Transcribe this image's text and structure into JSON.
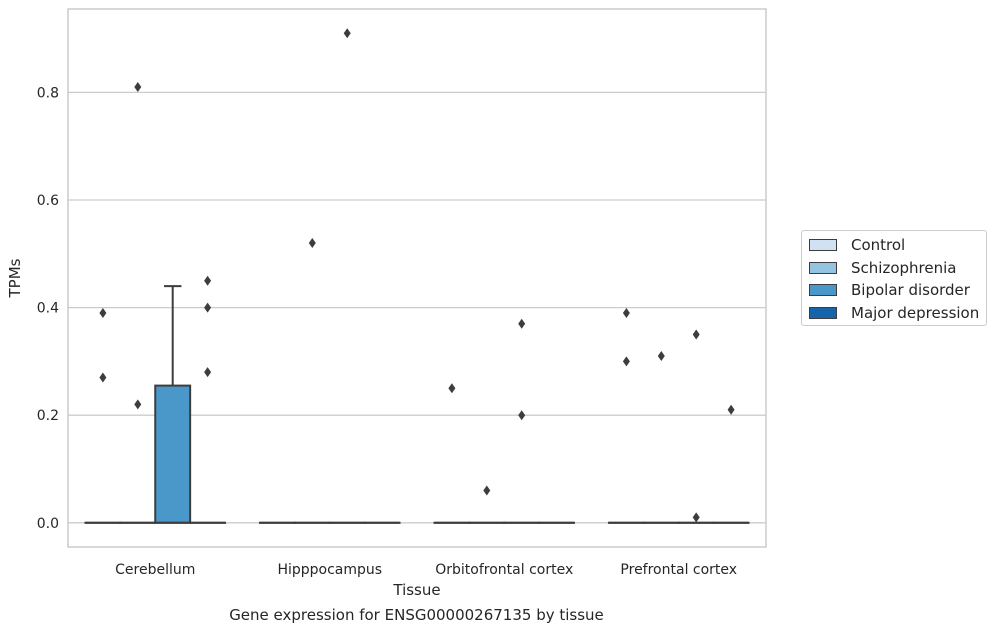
{
  "chart_data": {
    "type": "box",
    "xlabel": "Tissue",
    "ylabel": "TPMs",
    "caption": "Gene expression for ENSG00000267135 by tissue",
    "categories": [
      "Cerebellum",
      "Hipppocampus",
      "Orbitofrontal cortex",
      "Prefrontal cortex"
    ],
    "yticks": [
      "0.0",
      "0.2",
      "0.4",
      "0.6",
      "0.8"
    ],
    "ylim": [
      -0.045,
      0.955
    ],
    "grid": "horizontal",
    "legend_position": "right",
    "series": [
      {
        "name": "Control",
        "color": "#d0e1f2"
      },
      {
        "name": "Schizophrenia",
        "color": "#94c4df"
      },
      {
        "name": "Bipolar disorder",
        "color": "#4a98c9"
      },
      {
        "name": "Major depression",
        "color": "#1764ab"
      }
    ],
    "boxes": [
      {
        "category": "Cerebellum",
        "series": "Control",
        "q1": 0,
        "median": 0,
        "q3": 0,
        "whisker_low": 0,
        "whisker_high": 0,
        "fliers": [
          0.27,
          0.39
        ]
      },
      {
        "category": "Cerebellum",
        "series": "Schizophrenia",
        "q1": 0,
        "median": 0,
        "q3": 0,
        "whisker_low": 0,
        "whisker_high": 0,
        "fliers": [
          0.22,
          0.81
        ]
      },
      {
        "category": "Cerebellum",
        "series": "Bipolar disorder",
        "q1": 0,
        "median": 0,
        "q3": 0.255,
        "whisker_low": 0,
        "whisker_high": 0.44,
        "fliers": []
      },
      {
        "category": "Cerebellum",
        "series": "Major depression",
        "q1": 0,
        "median": 0,
        "q3": 0,
        "whisker_low": 0,
        "whisker_high": 0,
        "fliers": [
          0.28,
          0.4,
          0.45
        ]
      },
      {
        "category": "Hipppocampus",
        "series": "Control",
        "q1": 0,
        "median": 0,
        "q3": 0,
        "whisker_low": 0,
        "whisker_high": 0,
        "fliers": []
      },
      {
        "category": "Hipppocampus",
        "series": "Schizophrenia",
        "q1": 0,
        "median": 0,
        "q3": 0,
        "whisker_low": 0,
        "whisker_high": 0,
        "fliers": [
          0.52
        ]
      },
      {
        "category": "Hipppocampus",
        "series": "Bipolar disorder",
        "q1": 0,
        "median": 0,
        "q3": 0,
        "whisker_low": 0,
        "whisker_high": 0,
        "fliers": [
          0.91
        ]
      },
      {
        "category": "Hipppocampus",
        "series": "Major depression",
        "q1": 0,
        "median": 0,
        "q3": 0,
        "whisker_low": 0,
        "whisker_high": 0,
        "fliers": []
      },
      {
        "category": "Orbitofrontal cortex",
        "series": "Control",
        "q1": 0,
        "median": 0,
        "q3": 0,
        "whisker_low": 0,
        "whisker_high": 0,
        "fliers": [
          0.25
        ]
      },
      {
        "category": "Orbitofrontal cortex",
        "series": "Schizophrenia",
        "q1": 0,
        "median": 0,
        "q3": 0,
        "whisker_low": 0,
        "whisker_high": 0,
        "fliers": [
          0.06
        ]
      },
      {
        "category": "Orbitofrontal cortex",
        "series": "Bipolar disorder",
        "q1": 0,
        "median": 0,
        "q3": 0,
        "whisker_low": 0,
        "whisker_high": 0,
        "fliers": [
          0.2,
          0.37
        ]
      },
      {
        "category": "Orbitofrontal cortex",
        "series": "Major depression",
        "q1": 0,
        "median": 0,
        "q3": 0,
        "whisker_low": 0,
        "whisker_high": 0,
        "fliers": []
      },
      {
        "category": "Prefrontal cortex",
        "series": "Control",
        "q1": 0,
        "median": 0,
        "q3": 0,
        "whisker_low": 0,
        "whisker_high": 0,
        "fliers": [
          0.3,
          0.39
        ]
      },
      {
        "category": "Prefrontal cortex",
        "series": "Schizophrenia",
        "q1": 0,
        "median": 0,
        "q3": 0,
        "whisker_low": 0,
        "whisker_high": 0,
        "fliers": [
          0.31
        ]
      },
      {
        "category": "Prefrontal cortex",
        "series": "Bipolar disorder",
        "q1": 0,
        "median": 0,
        "q3": 0,
        "whisker_low": 0,
        "whisker_high": 0,
        "fliers": [
          0.01,
          0.35
        ]
      },
      {
        "category": "Prefrontal cortex",
        "series": "Major depression",
        "q1": 0,
        "median": 0,
        "q3": 0,
        "whisker_low": 0,
        "whisker_high": 0,
        "fliers": [
          0.21
        ]
      }
    ]
  }
}
